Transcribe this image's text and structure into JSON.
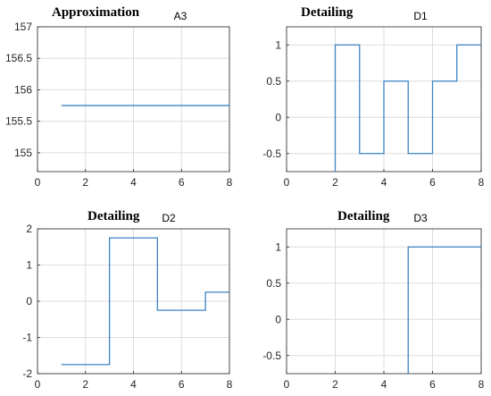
{
  "colors": {
    "series": "#3b84c4",
    "grid": "#dddddd",
    "axis": "#262626"
  },
  "chart_data": [
    {
      "type": "line",
      "caption": "Approximation",
      "title": "A3",
      "xlim": [
        0,
        8
      ],
      "ylim": [
        154.7,
        157
      ],
      "xticks": [
        "0",
        "2",
        "4",
        "6",
        "8"
      ],
      "yticks": [
        "155",
        "155.5",
        "156",
        "156.5",
        "157"
      ],
      "grid": true,
      "series": [
        {
          "step": true,
          "x": [
            1,
            8
          ],
          "y": [
            155.75,
            155.75
          ]
        }
      ]
    },
    {
      "type": "line",
      "caption": "Detailing",
      "title": "D1",
      "xlim": [
        0,
        8
      ],
      "ylim": [
        -0.75,
        1.25
      ],
      "xticks": [
        "0",
        "2",
        "4",
        "6",
        "8"
      ],
      "yticks": [
        "-0.5",
        "0",
        "0.5",
        "1"
      ],
      "grid": true,
      "series": [
        {
          "step": true,
          "x": [
            2,
            3,
            4,
            5,
            6,
            7,
            8
          ],
          "y": [
            1,
            -0.5,
            0.5,
            -0.5,
            0.5,
            1,
            1
          ],
          "start_y": -0.75
        }
      ]
    },
    {
      "type": "line",
      "caption": "Detailing",
      "title": "D2",
      "xlim": [
        0,
        8
      ],
      "ylim": [
        -2,
        2
      ],
      "xticks": [
        "0",
        "2",
        "4",
        "6",
        "8"
      ],
      "yticks": [
        "-2",
        "-1",
        "0",
        "1",
        "2"
      ],
      "grid": true,
      "series": [
        {
          "step": true,
          "x": [
            1,
            3,
            5,
            7,
            8
          ],
          "y": [
            -1.75,
            1.75,
            -0.25,
            0.25,
            0.25
          ]
        }
      ]
    },
    {
      "type": "line",
      "caption": "Detailing",
      "title": "D3",
      "xlim": [
        0,
        8
      ],
      "ylim": [
        -0.75,
        1.25
      ],
      "xticks": [
        "0",
        "2",
        "4",
        "6",
        "8"
      ],
      "yticks": [
        "-0.5",
        "0",
        "0.5",
        "1"
      ],
      "grid": true,
      "series": [
        {
          "step": true,
          "x": [
            5,
            8
          ],
          "y": [
            1,
            1
          ],
          "start_y": -0.75
        }
      ]
    }
  ]
}
